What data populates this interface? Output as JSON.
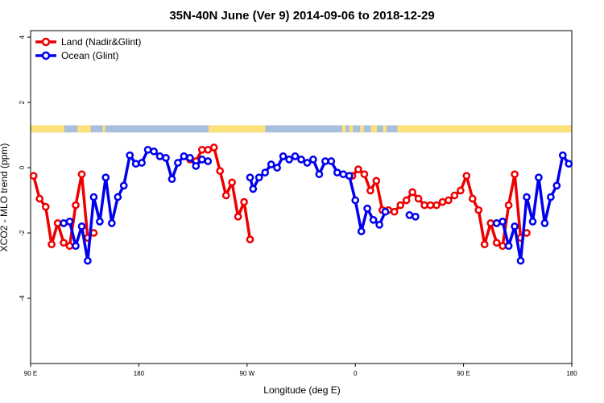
{
  "chart_data": {
    "type": "line",
    "title": "35N-40N June (Ver 9)   2014-09-06 to 2018-12-29",
    "xlabel": "Longitude (deg E)",
    "ylabel": "XCO2 - MLO trend (ppm)",
    "xlim": [
      90,
      540
    ],
    "ylim": [
      -6,
      4.2
    ],
    "x_ticks": [
      {
        "value": 90,
        "label": "90 E"
      },
      {
        "value": 180,
        "label": "180"
      },
      {
        "value": 270,
        "label": "90 W"
      },
      {
        "value": 360,
        "label": "0"
      },
      {
        "value": 450,
        "label": "90 E"
      },
      {
        "value": 540,
        "label": "180"
      }
    ],
    "y_ticks": [
      {
        "value": -4,
        "label": "-4"
      },
      {
        "value": -2,
        "label": "-2"
      },
      {
        "value": 0,
        "label": "0"
      },
      {
        "value": 2,
        "label": "2"
      },
      {
        "value": 4,
        "label": "4"
      }
    ],
    "legend_position": "top-left",
    "land_ocean_band": {
      "y_range": [
        1.08,
        1.3
      ],
      "land_color": "#fde17a",
      "ocean_color": "#a8bfde",
      "land_segments": [
        [
          90,
          118
        ],
        [
          129,
          140
        ],
        [
          150,
          152
        ],
        [
          238,
          285
        ],
        [
          349,
          352
        ],
        [
          355,
          358
        ],
        [
          364,
          367
        ],
        [
          373,
          378
        ],
        [
          383,
          386
        ],
        [
          395,
          540
        ]
      ]
    },
    "series": [
      {
        "name": "Land (Nadir&Glint)",
        "color": "#ee0000",
        "segments": [
          [
            [
              92.5,
              -0.25
            ],
            [
              97.5,
              -0.95
            ],
            [
              102.5,
              -1.2
            ],
            [
              107.5,
              -2.35
            ],
            [
              112.5,
              -1.7
            ],
            [
              117.5,
              -2.3
            ],
            [
              122.5,
              -2.4
            ],
            [
              127.5,
              -1.15
            ],
            [
              132.5,
              -0.2
            ],
            [
              137.5,
              -2.15
            ],
            [
              142.5,
              -2.0
            ]
          ],
          [
            [
              222.5,
              0.25
            ],
            [
              227.5,
              0.2
            ],
            [
              232.5,
              0.55
            ],
            [
              237.5,
              0.55
            ],
            [
              242.5,
              0.62
            ],
            [
              247.5,
              -0.1
            ],
            [
              252.5,
              -0.85
            ],
            [
              257.5,
              -0.45
            ],
            [
              262.5,
              -1.5
            ],
            [
              267.5,
              -1.05
            ],
            [
              272.5,
              -2.2
            ]
          ],
          [
            [
              357.5,
              -0.25
            ],
            [
              362.5,
              -0.05
            ],
            [
              367.5,
              -0.2
            ],
            [
              372.5,
              -0.7
            ],
            [
              377.5,
              -0.4
            ],
            [
              382.5,
              -1.3
            ],
            [
              387.5,
              -1.3
            ],
            [
              392.5,
              -1.35
            ],
            [
              397.5,
              -1.15
            ],
            [
              402.5,
              -1.0
            ],
            [
              407.5,
              -0.75
            ],
            [
              412.5,
              -0.95
            ],
            [
              417.5,
              -1.15
            ],
            [
              422.5,
              -1.15
            ],
            [
              427.5,
              -1.15
            ],
            [
              432.5,
              -1.05
            ],
            [
              437.5,
              -1.0
            ],
            [
              442.5,
              -0.85
            ],
            [
              447.5,
              -0.7
            ],
            [
              452.5,
              -0.25
            ],
            [
              457.5,
              -0.95
            ],
            [
              462.5,
              -1.3
            ],
            [
              467.5,
              -2.35
            ],
            [
              472.5,
              -1.7
            ],
            [
              477.5,
              -2.3
            ],
            [
              482.5,
              -2.4
            ],
            [
              487.5,
              -1.15
            ],
            [
              492.5,
              -0.2
            ],
            [
              497.5,
              -2.15
            ],
            [
              502.5,
              -2.0
            ]
          ]
        ]
      },
      {
        "name": "Ocean (Glint)",
        "color": "#0000ee",
        "segments": [
          [
            [
              117.5,
              -1.7
            ],
            [
              122.5,
              -1.65
            ],
            [
              127.5,
              -2.4
            ],
            [
              132.5,
              -1.8
            ],
            [
              137.5,
              -2.85
            ],
            [
              142.5,
              -0.9
            ],
            [
              147.5,
              -1.65
            ],
            [
              152.5,
              -0.3
            ],
            [
              157.5,
              -1.7
            ],
            [
              162.5,
              -0.9
            ],
            [
              167.5,
              -0.55
            ],
            [
              172.5,
              0.38
            ],
            [
              177.5,
              0.12
            ],
            [
              182.5,
              0.15
            ],
            [
              187.5,
              0.55
            ],
            [
              192.5,
              0.5
            ],
            [
              197.5,
              0.35
            ],
            [
              202.5,
              0.3
            ],
            [
              207.5,
              -0.35
            ],
            [
              212.5,
              0.15
            ],
            [
              217.5,
              0.35
            ],
            [
              222.5,
              0.3
            ],
            [
              227.5,
              0.05
            ],
            [
              232.5,
              0.25
            ],
            [
              237.5,
              0.2
            ]
          ],
          [
            [
              272.5,
              -0.3
            ],
            [
              275,
              -0.65
            ],
            [
              280,
              -0.3
            ],
            [
              285,
              -0.15
            ],
            [
              290,
              0.1
            ],
            [
              295,
              0.0
            ],
            [
              300,
              0.35
            ],
            [
              305,
              0.25
            ],
            [
              310,
              0.35
            ],
            [
              315,
              0.25
            ],
            [
              320,
              0.15
            ],
            [
              325,
              0.25
            ],
            [
              330,
              -0.2
            ],
            [
              335,
              0.2
            ],
            [
              340,
              0.2
            ],
            [
              345,
              -0.15
            ],
            [
              350,
              -0.2
            ],
            [
              355,
              -0.25
            ],
            [
              360,
              -1.0
            ],
            [
              365,
              -1.95
            ],
            [
              370,
              -1.25
            ],
            [
              375,
              -1.6
            ],
            [
              380,
              -1.75
            ],
            [
              385,
              -1.35
            ]
          ],
          [
            [
              405,
              -1.45
            ],
            [
              410,
              -1.5
            ]
          ],
          [
            [
              477.5,
              -1.7
            ],
            [
              482.5,
              -1.65
            ],
            [
              487.5,
              -2.4
            ],
            [
              492.5,
              -1.8
            ],
            [
              497.5,
              -2.85
            ],
            [
              502.5,
              -0.9
            ],
            [
              507.5,
              -1.65
            ],
            [
              512.5,
              -0.3
            ],
            [
              517.5,
              -1.7
            ],
            [
              522.5,
              -0.9
            ],
            [
              527.5,
              -0.55
            ],
            [
              532.5,
              0.38
            ],
            [
              537.5,
              0.12
            ]
          ]
        ]
      }
    ]
  }
}
